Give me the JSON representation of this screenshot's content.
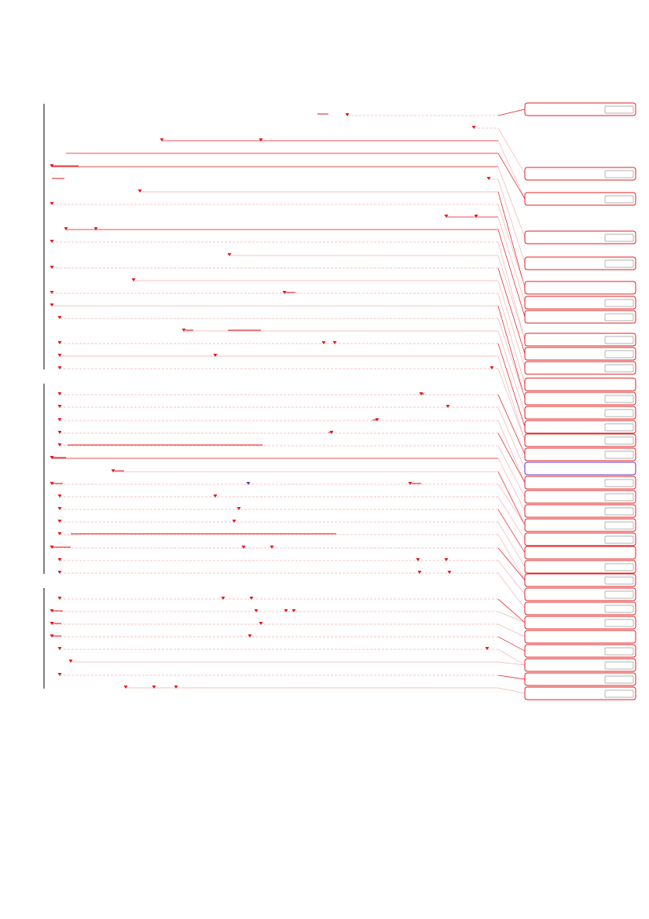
{
  "document": {
    "kind": "tracked-changes markup view",
    "text_legible": false
  },
  "colors": {
    "background": "#ffffff",
    "markup_red": "#e8141a",
    "balloon_border": "#e02020",
    "balloon_active": "#6a2ec8",
    "connector_faint": "#f2b3b3",
    "margin_bar": "#000000",
    "checkbox_border": "#9a9a9a"
  },
  "icons": {
    "anchor": "down-triangle-marker",
    "balloon_control": "small-checkbox"
  },
  "comment_balloons": {
    "count": 44,
    "active_count": 1,
    "labels_visible": false
  }
}
